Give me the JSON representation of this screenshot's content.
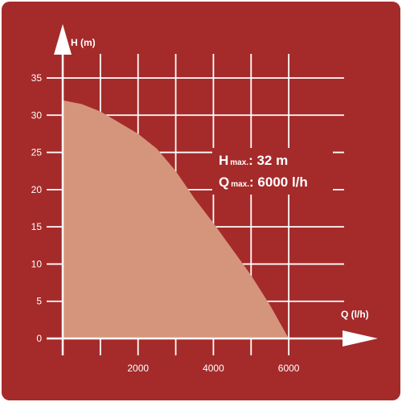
{
  "colors": {
    "background": "#a52a2a",
    "grid": "#ffffff",
    "area_fill": "#d4957c",
    "text": "#ffffff"
  },
  "chart_data": {
    "type": "area",
    "title": "",
    "xlabel": "Q (l/h)",
    "ylabel": "H (m)",
    "xlim": [
      0,
      7000
    ],
    "ylim": [
      0,
      35
    ],
    "x_ticks": [
      2000,
      4000,
      6000
    ],
    "y_ticks": [
      0,
      5,
      10,
      15,
      20,
      25,
      30,
      35
    ],
    "grid": true,
    "series": [
      {
        "x": [
          0,
          500,
          1000,
          1500,
          2000,
          2500,
          3000,
          3500,
          4000,
          4500,
          5000,
          5500,
          6000
        ],
        "y": [
          32,
          31.5,
          30.5,
          29,
          27.5,
          25.5,
          22.5,
          18.8,
          15.5,
          12,
          8.5,
          4.5,
          0
        ]
      }
    ],
    "annotations": [
      {
        "big": "H",
        "small": "max.",
        "value": ": 32 m"
      },
      {
        "big": "Q",
        "small": "max.",
        "value": ": 6000 l/h"
      }
    ]
  }
}
